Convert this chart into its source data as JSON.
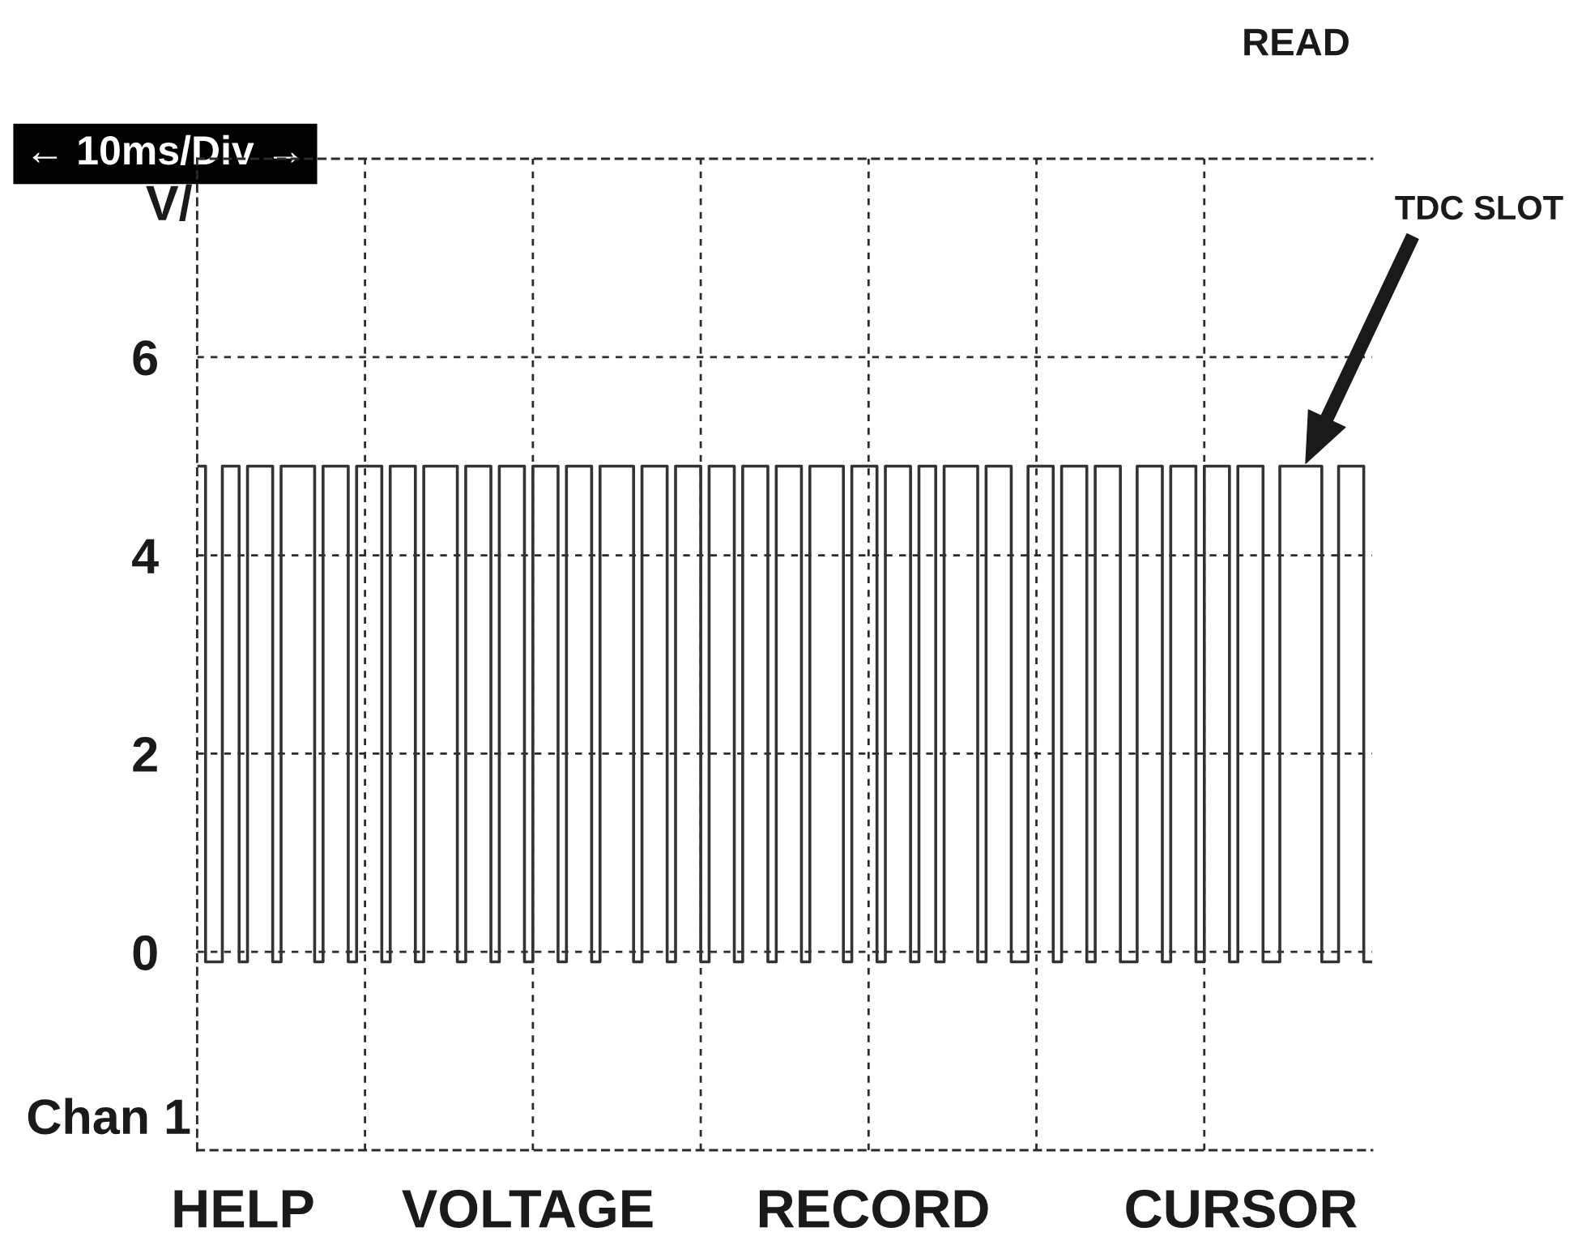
{
  "chart_data": {
    "type": "step",
    "xlabel": "← 10ms/Div →",
    "ylabel": "V/",
    "categories": [
      null,
      null,
      null,
      null,
      null,
      null,
      null,
      null,
      null,
      null,
      null,
      null,
      null,
      null,
      null,
      null,
      null,
      null,
      null,
      null,
      null,
      null,
      null,
      null,
      null,
      null,
      null,
      null,
      null,
      null,
      null,
      null,
      null,
      null,
      null,
      null,
      null,
      null,
      null,
      null,
      null,
      null,
      null,
      null,
      null,
      null,
      null,
      null,
      null,
      null,
      null,
      null,
      null,
      null,
      null,
      null,
      null,
      null,
      null,
      null,
      null,
      null,
      null,
      null,
      null,
      null,
      null,
      null,
      null,
      null,
      null,
      null,
      null,
      null,
      null,
      null,
      null,
      null,
      null,
      null,
      null,
      null,
      null,
      null,
      null,
      null,
      null,
      null,
      null,
      null,
      null,
      null,
      null,
      null,
      null,
      null,
      null,
      null,
      null,
      null,
      null,
      null,
      null,
      null,
      null,
      null,
      null,
      null,
      null,
      null,
      null,
      null,
      null,
      null,
      null,
      null,
      null,
      null,
      null,
      null,
      null,
      null,
      null,
      null,
      null,
      null,
      null,
      null,
      null,
      null,
      null,
      null,
      null,
      null,
      null,
      null,
      null,
      null,
      null,
      null
    ],
    "series": [
      {
        "color": "#333333",
        "values": [
          4.9,
          -0.1,
          -0.1,
          4.9,
          4.9,
          -0.1,
          4.9,
          4.9,
          4.9,
          -0.1,
          4.9,
          4.9,
          4.9,
          4.9,
          -0.1,
          4.9,
          4.9,
          4.9,
          -0.1,
          4.9,
          4.9,
          4.9,
          -0.1,
          4.9,
          4.9,
          4.9,
          -0.1,
          4.9,
          4.9,
          4.9,
          4.9,
          -0.1,
          4.9,
          4.9,
          4.9,
          -0.1,
          4.9,
          4.9,
          4.9,
          -0.1,
          4.9,
          4.9,
          4.9,
          -0.1,
          4.9,
          4.9,
          4.9,
          -0.1,
          4.9,
          4.9,
          4.9,
          4.9,
          -0.1,
          4.9,
          4.9,
          4.9,
          -0.1,
          4.9,
          4.9,
          4.9,
          -0.1,
          4.9,
          4.9,
          4.9,
          -0.1,
          4.9,
          4.9,
          4.9,
          -0.1,
          4.9,
          4.9,
          4.9,
          -0.1,
          4.9,
          4.9,
          4.9,
          4.9,
          -0.1,
          4.9,
          4.9,
          4.9,
          -0.1,
          4.9,
          4.9,
          4.9,
          -0.1,
          4.9,
          4.9,
          -0.1,
          4.9,
          4.9,
          4.9,
          4.9,
          -0.1,
          4.9,
          4.9,
          4.9,
          -0.1,
          -0.1,
          4.9,
          4.9,
          4.9,
          -0.1,
          4.9,
          4.9,
          4.9,
          -0.1,
          4.9,
          4.9,
          4.9,
          -0.1,
          -0.1,
          4.9,
          4.9,
          4.9,
          -0.1,
          4.9,
          4.9,
          4.9,
          -0.1,
          4.9,
          4.9,
          4.9,
          -0.1,
          4.9,
          4.9,
          4.9,
          -0.1,
          -0.1,
          4.9,
          4.9,
          4.9,
          4.9,
          4.9,
          -0.1,
          -0.1,
          4.9,
          4.9,
          4.9,
          -0.1
        ]
      }
    ],
    "ylim": [
      -2,
      8
    ],
    "yticks": [
      0,
      2,
      4,
      6
    ],
    "grid": true,
    "tick_labels": "y",
    "annotations": [
      "READ",
      "TDC SLOT",
      "Chan 1",
      "HELP",
      "VOLTAGE",
      "RECORD",
      "CURSOR"
    ]
  }
}
